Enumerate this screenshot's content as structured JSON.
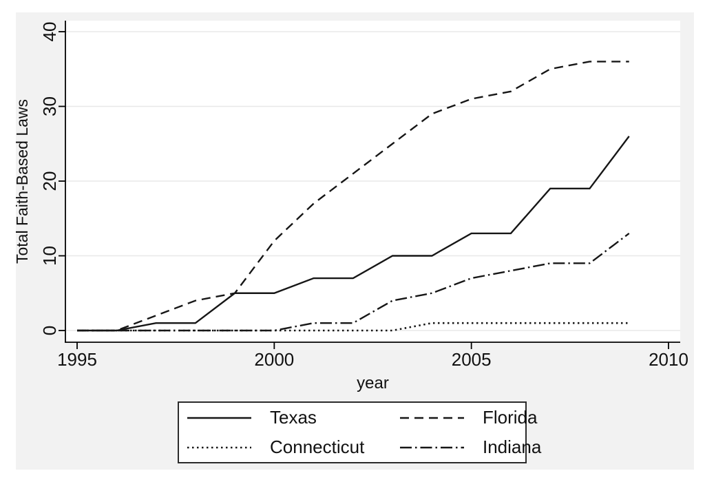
{
  "figure": {
    "background_color": "#f2f2f2",
    "plot_background_color": "#ffffff",
    "grid_color": "#e8e8e8",
    "axis_color": "#000000",
    "line_color": "#161616",
    "text_color": "#111111"
  },
  "chart_data": {
    "type": "line",
    "title": "",
    "xlabel": "year",
    "ylabel": "Total Faith-Based Laws",
    "x": [
      1995,
      1996,
      1997,
      1998,
      1999,
      2000,
      2001,
      2002,
      2003,
      2004,
      2005,
      2006,
      2007,
      2008,
      2009
    ],
    "series": [
      {
        "name": "Texas",
        "dash": "solid",
        "values": [
          0,
          0,
          1,
          1,
          5,
          5,
          7,
          7,
          10,
          10,
          13,
          13,
          19,
          19,
          26
        ]
      },
      {
        "name": "Florida",
        "dash": "dashed",
        "values": [
          0,
          0,
          2,
          4,
          5,
          12,
          17,
          21,
          25,
          29,
          31,
          32,
          35,
          36,
          36
        ]
      },
      {
        "name": "Connecticut",
        "dash": "dotted",
        "values": [
          0,
          0,
          0,
          0,
          0,
          0,
          0,
          0,
          0,
          1,
          1,
          1,
          1,
          1,
          1
        ]
      },
      {
        "name": "Indiana",
        "dash": "dashdot",
        "values": [
          0,
          0,
          0,
          0,
          0,
          0,
          1,
          1,
          4,
          5,
          7,
          8,
          9,
          9,
          13
        ]
      }
    ],
    "xticks": [
      1995,
      2000,
      2005,
      2010
    ],
    "yticks": [
      0,
      10,
      20,
      30,
      40
    ],
    "xlim": [
      1994.7,
      2010.3
    ],
    "ylim": [
      0,
      40
    ],
    "grid": "horizontal",
    "legend_position": "bottom-center",
    "legend_order": [
      "Texas",
      "Florida",
      "Connecticut",
      "Indiana"
    ]
  }
}
